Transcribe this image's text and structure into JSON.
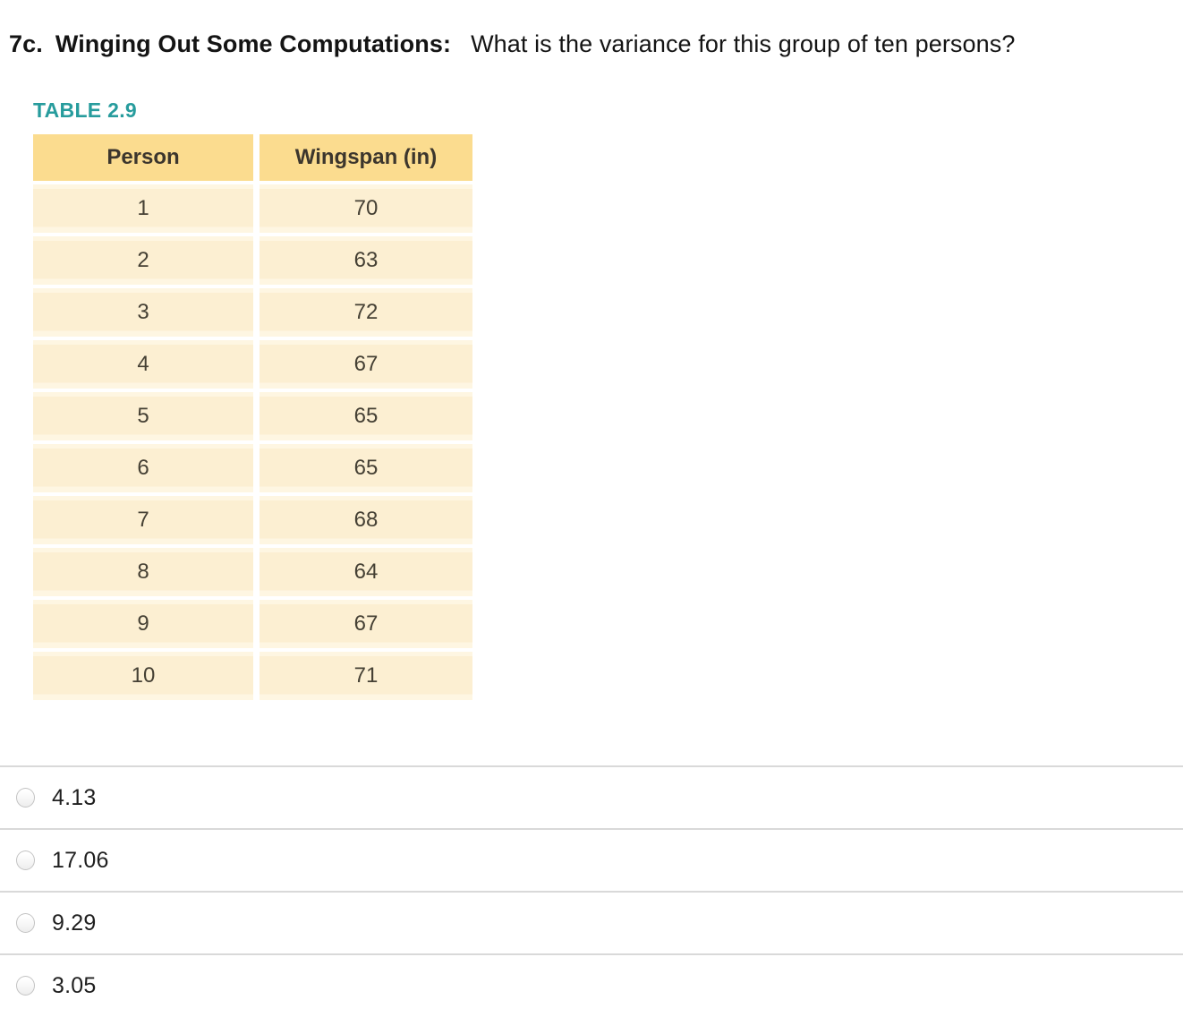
{
  "question": {
    "number": "7c.",
    "name": "Winging Out Some Computations:",
    "prompt": "What is the variance for this group of ten persons?"
  },
  "table": {
    "label": "TABLE 2.9",
    "columns": [
      "Person",
      "Wingspan (in)"
    ],
    "rows": [
      [
        "1",
        "70"
      ],
      [
        "2",
        "63"
      ],
      [
        "3",
        "72"
      ],
      [
        "4",
        "67"
      ],
      [
        "5",
        "65"
      ],
      [
        "6",
        "65"
      ],
      [
        "7",
        "68"
      ],
      [
        "8",
        "64"
      ],
      [
        "9",
        "67"
      ],
      [
        "10",
        "71"
      ]
    ]
  },
  "options": [
    {
      "label": "4.13",
      "selected": false
    },
    {
      "label": "17.06",
      "selected": false
    },
    {
      "label": "9.29",
      "selected": false
    },
    {
      "label": "3.05",
      "selected": false
    }
  ],
  "colors": {
    "table_label_teal": "#279C9D",
    "header_gold": "#FBDC8F",
    "row_cream": "#FCEFD2",
    "row_cream_light": "#FEF6E2",
    "divider_gray": "#D9D9D9",
    "title_text": "#141414",
    "cell_text": "#454034"
  }
}
